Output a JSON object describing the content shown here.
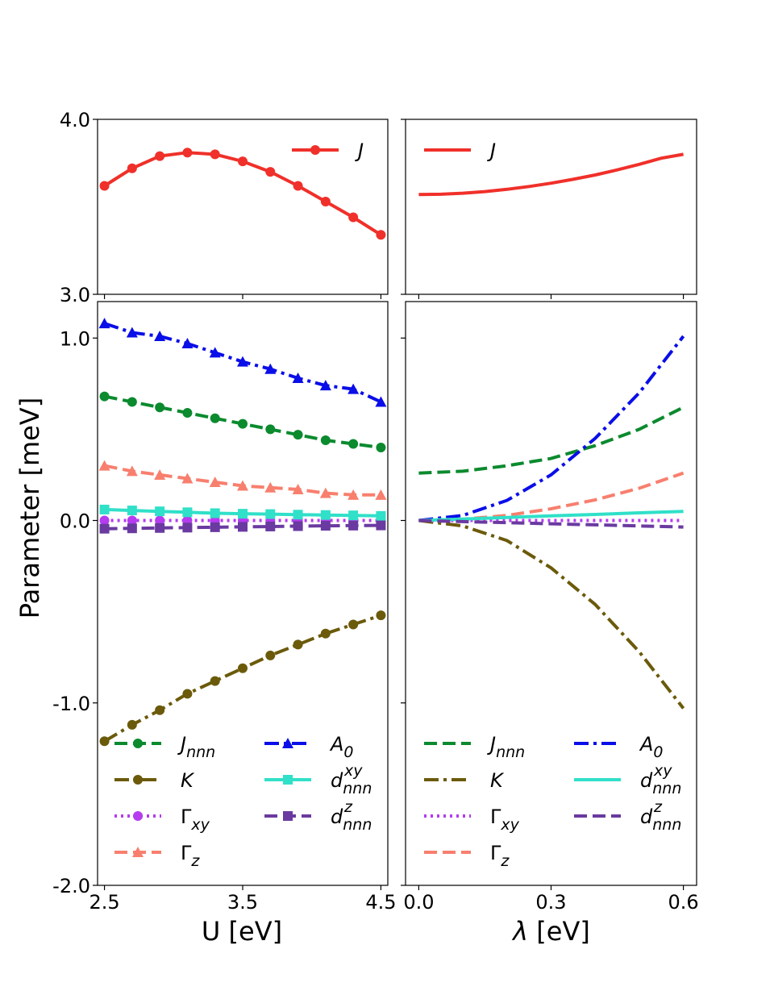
{
  "figure": {
    "ylabel": "Parameter [meV]",
    "top_left_yticks": [
      "4.0",
      "3.0"
    ],
    "bottom_left_yticks": [
      "1.0",
      "0.0",
      "-1.0",
      "-2.0"
    ],
    "left_xticks": [
      "2.5",
      "3.5",
      "4.5"
    ],
    "right_xticks": [
      "0.0",
      "0.3",
      "0.6"
    ],
    "left_xlabel": "U [eV]",
    "right_xlabel_symbol": "λ",
    "right_xlabel_unit": " [eV]"
  },
  "colors": {
    "J": "#f0302a",
    "Jnnn": "#0b8a2e",
    "K": "#6b5a0a",
    "Gxy": "#b53cf0",
    "Gz": "#f87f6e",
    "A0": "#0a0ee8",
    "dxy": "#30e0c8",
    "dz": "#6a3aa0"
  },
  "chart_data": [
    {
      "panel": "top-left",
      "type": "line",
      "xlim": [
        2.45,
        4.55
      ],
      "ylim": [
        3.0,
        4.0
      ],
      "yticks": [
        3.0,
        4.0
      ],
      "xlabel": "",
      "ylabel": "",
      "legend_position": "top-right",
      "series": [
        {
          "name": "J",
          "key": "J",
          "style": "solid",
          "marker": "circle",
          "x": [
            2.5,
            2.7,
            2.9,
            3.1,
            3.3,
            3.5,
            3.7,
            3.9,
            4.1,
            4.3,
            4.5
          ],
          "y": [
            3.62,
            3.72,
            3.79,
            3.81,
            3.8,
            3.76,
            3.7,
            3.62,
            3.53,
            3.44,
            3.34
          ]
        }
      ]
    },
    {
      "panel": "top-right",
      "type": "line",
      "xlim": [
        -0.03,
        0.63
      ],
      "ylim": [
        3.0,
        4.0
      ],
      "xlabel": "",
      "ylabel": "",
      "legend_position": "top-left",
      "series": [
        {
          "name": "J",
          "key": "J",
          "style": "solid",
          "marker": "none",
          "x": [
            0.0,
            0.05,
            0.1,
            0.15,
            0.2,
            0.25,
            0.3,
            0.35,
            0.4,
            0.45,
            0.5,
            0.55,
            0.6
          ],
          "y": [
            3.57,
            3.572,
            3.578,
            3.587,
            3.6,
            3.616,
            3.635,
            3.657,
            3.682,
            3.711,
            3.743,
            3.778,
            3.8
          ]
        }
      ]
    },
    {
      "panel": "bottom-left",
      "type": "line",
      "xlim": [
        2.45,
        4.55
      ],
      "ylim": [
        -2.0,
        1.2
      ],
      "xticks": [
        2.5,
        3.5,
        4.5
      ],
      "yticks": [
        -2.0,
        -1.0,
        0.0,
        1.0
      ],
      "xlabel": "U [eV]",
      "ylabel": "Parameter [meV]",
      "legend_position": "bottom",
      "series": [
        {
          "name": "J",
          "sub": "nnn",
          "sup": "",
          "key": "Jnnn",
          "style": "dashed",
          "marker": "circle",
          "x": [
            2.5,
            2.7,
            2.9,
            3.1,
            3.3,
            3.5,
            3.7,
            3.9,
            4.1,
            4.3,
            4.5
          ],
          "y": [
            0.68,
            0.65,
            0.62,
            0.59,
            0.56,
            0.53,
            0.5,
            0.47,
            0.44,
            0.42,
            0.4
          ]
        },
        {
          "name": "K",
          "sub": "",
          "sup": "",
          "key": "K",
          "style": "dashdot",
          "marker": "circle",
          "x": [
            2.5,
            2.7,
            2.9,
            3.1,
            3.3,
            3.5,
            3.7,
            3.9,
            4.1,
            4.3,
            4.5
          ],
          "y": [
            -1.21,
            -1.12,
            -1.04,
            -0.95,
            -0.88,
            -0.81,
            -0.74,
            -0.68,
            -0.62,
            -0.57,
            -0.52
          ]
        },
        {
          "name": "Γ",
          "sub": "xy",
          "sup": "",
          "key": "Gxy",
          "style": "dotted",
          "marker": "circle",
          "x": [
            2.5,
            2.7,
            2.9,
            3.1,
            3.3,
            3.5,
            3.7,
            3.9,
            4.1,
            4.3,
            4.5
          ],
          "y": [
            0.0,
            0.0,
            0.0,
            0.0,
            0.0,
            0.0,
            0.0,
            0.0,
            0.0,
            0.0,
            0.0
          ]
        },
        {
          "name": "Γ",
          "sub": "z",
          "sup": "",
          "key": "Gz",
          "style": "dashed",
          "marker": "triangle",
          "x": [
            2.5,
            2.7,
            2.9,
            3.1,
            3.3,
            3.5,
            3.7,
            3.9,
            4.1,
            4.3,
            4.5
          ],
          "y": [
            0.3,
            0.27,
            0.25,
            0.23,
            0.21,
            0.19,
            0.18,
            0.17,
            0.15,
            0.14,
            0.14
          ]
        },
        {
          "name": "A",
          "sub": "0",
          "sup": "",
          "key": "A0",
          "style": "dashdot",
          "marker": "triangle",
          "x": [
            2.5,
            2.7,
            2.9,
            3.1,
            3.3,
            3.5,
            3.7,
            3.9,
            4.1,
            4.3,
            4.5
          ],
          "y": [
            1.08,
            1.03,
            1.01,
            0.97,
            0.92,
            0.87,
            0.83,
            0.78,
            0.74,
            0.72,
            0.65
          ]
        },
        {
          "name": "d",
          "sub": "nnn",
          "sup": "xy",
          "key": "dxy",
          "style": "solid",
          "marker": "square",
          "x": [
            2.5,
            2.7,
            2.9,
            3.1,
            3.3,
            3.5,
            3.7,
            3.9,
            4.1,
            4.3,
            4.5
          ],
          "y": [
            0.06,
            0.055,
            0.05,
            0.045,
            0.04,
            0.037,
            0.035,
            0.032,
            0.03,
            0.028,
            0.025
          ]
        },
        {
          "name": "d",
          "sub": "nnn",
          "sup": "z",
          "key": "dz",
          "style": "dashed",
          "marker": "square",
          "x": [
            2.5,
            2.7,
            2.9,
            3.1,
            3.3,
            3.5,
            3.7,
            3.9,
            4.1,
            4.3,
            4.5
          ],
          "y": [
            -0.045,
            -0.043,
            -0.041,
            -0.039,
            -0.037,
            -0.035,
            -0.033,
            -0.031,
            -0.029,
            -0.028,
            -0.027
          ]
        }
      ]
    },
    {
      "panel": "bottom-right",
      "type": "line",
      "xlim": [
        -0.03,
        0.63
      ],
      "ylim": [
        -2.0,
        1.2
      ],
      "xticks": [
        0.0,
        0.3,
        0.6
      ],
      "xlabel": "λ [eV]",
      "ylabel": "",
      "legend_position": "bottom",
      "series": [
        {
          "name": "J",
          "sub": "nnn",
          "sup": "",
          "key": "Jnnn",
          "style": "dashed",
          "x": [
            0.0,
            0.1,
            0.2,
            0.3,
            0.4,
            0.5,
            0.6
          ],
          "y": [
            0.26,
            0.27,
            0.3,
            0.34,
            0.41,
            0.5,
            0.62
          ]
        },
        {
          "name": "K",
          "sub": "",
          "sup": "",
          "key": "K",
          "style": "dashdot",
          "x": [
            0.0,
            0.1,
            0.2,
            0.3,
            0.4,
            0.5,
            0.6
          ],
          "y": [
            0.0,
            -0.03,
            -0.11,
            -0.26,
            -0.46,
            -0.72,
            -1.03
          ]
        },
        {
          "name": "Γ",
          "sub": "xy",
          "sup": "",
          "key": "Gxy",
          "style": "dotted",
          "x": [
            0.0,
            0.1,
            0.2,
            0.3,
            0.4,
            0.5,
            0.6
          ],
          "y": [
            0.0,
            0.0,
            0.0,
            0.0,
            0.0,
            0.0,
            0.0
          ]
        },
        {
          "name": "Γ",
          "sub": "z",
          "sup": "",
          "key": "Gz",
          "style": "dashed",
          "x": [
            0.0,
            0.1,
            0.2,
            0.3,
            0.4,
            0.5,
            0.6
          ],
          "y": [
            0.0,
            0.007,
            0.028,
            0.064,
            0.113,
            0.177,
            0.26
          ]
        },
        {
          "name": "A",
          "sub": "0",
          "sup": "",
          "key": "A0",
          "style": "dashdot",
          "x": [
            0.0,
            0.1,
            0.2,
            0.3,
            0.4,
            0.5,
            0.6
          ],
          "y": [
            0.0,
            0.028,
            0.11,
            0.25,
            0.45,
            0.7,
            1.01
          ]
        },
        {
          "name": "d",
          "sub": "nnn",
          "sup": "xy",
          "key": "dxy",
          "style": "solid",
          "x": [
            0.0,
            0.1,
            0.2,
            0.3,
            0.4,
            0.5,
            0.6
          ],
          "y": [
            0.0,
            0.008,
            0.017,
            0.025,
            0.033,
            0.042,
            0.05
          ]
        },
        {
          "name": "d",
          "sub": "nnn",
          "sup": "z",
          "key": "dz",
          "style": "dashed",
          "x": [
            0.0,
            0.1,
            0.2,
            0.3,
            0.4,
            0.5,
            0.6
          ],
          "y": [
            0.0,
            -0.006,
            -0.012,
            -0.018,
            -0.024,
            -0.03,
            -0.036
          ]
        }
      ]
    }
  ]
}
